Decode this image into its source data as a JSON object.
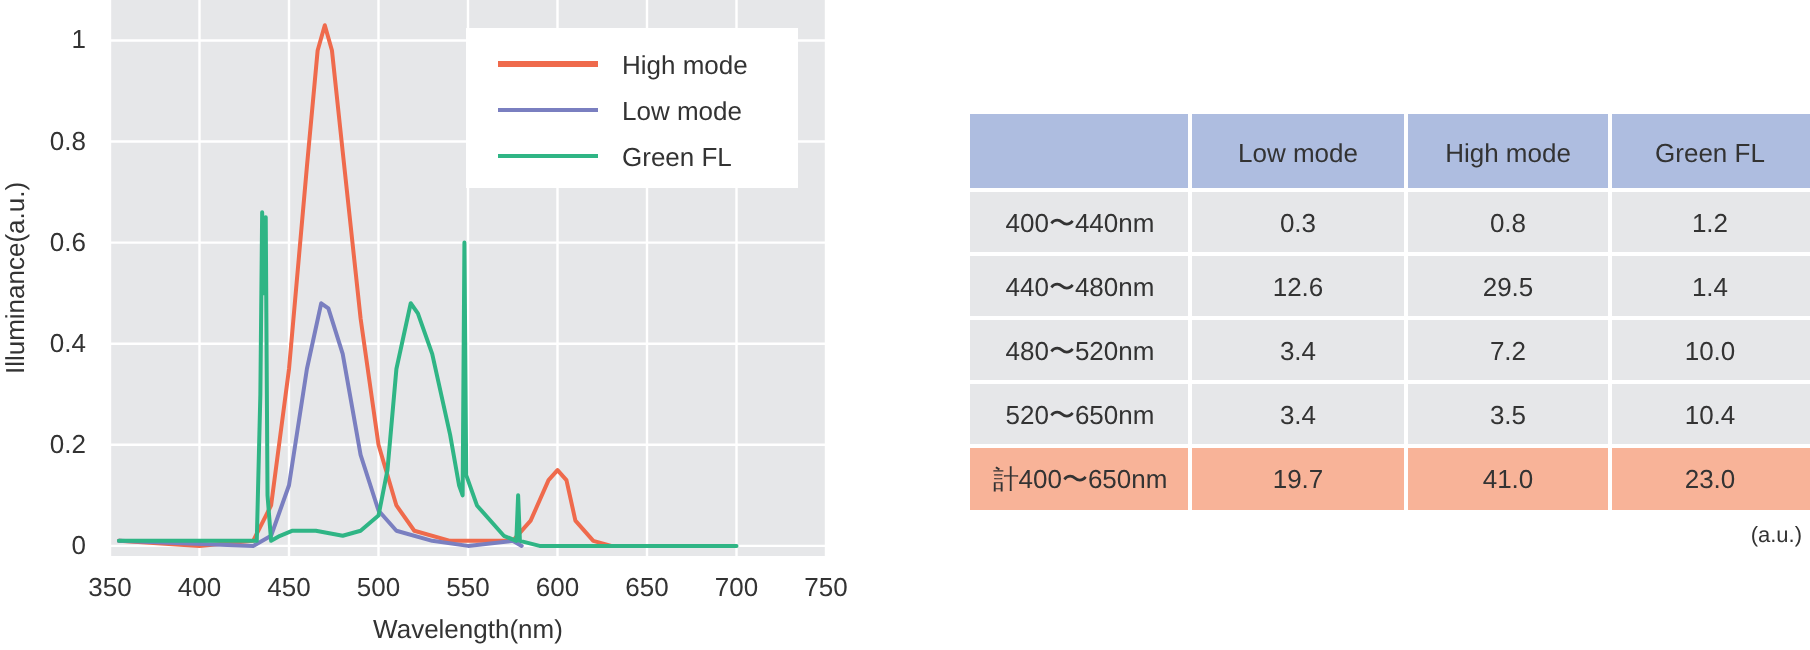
{
  "chart_data": [
    {
      "type": "line",
      "xlabel": "Wavelength(nm)",
      "ylabel": "Illuminance(a.u.)",
      "xlim": [
        350,
        750
      ],
      "ylim": [
        -0.02,
        1.08
      ],
      "xticks": [
        350,
        400,
        450,
        500,
        550,
        600,
        650,
        700,
        750
      ],
      "yticks": [
        0,
        0.2,
        0.4,
        0.6,
        0.8,
        1
      ],
      "grid": true,
      "legend": "top right",
      "line_style": "solid",
      "marker": "none",
      "series": [
        {
          "name": "High mode",
          "color": "#ef6a4c",
          "x": [
            355,
            400,
            430,
            440,
            450,
            460,
            466,
            470,
            474,
            480,
            490,
            500,
            510,
            520,
            540,
            575,
            585,
            595,
            600,
            605,
            610,
            620,
            630
          ],
          "values": [
            0.01,
            0.0,
            0.01,
            0.08,
            0.35,
            0.75,
            0.98,
            1.03,
            0.98,
            0.78,
            0.45,
            0.2,
            0.08,
            0.03,
            0.01,
            0.01,
            0.05,
            0.13,
            0.15,
            0.13,
            0.05,
            0.01,
            0.0
          ]
        },
        {
          "name": "Low mode",
          "color": "#7a7fc0",
          "x": [
            355,
            430,
            440,
            450,
            460,
            468,
            472,
            480,
            490,
            500,
            510,
            530,
            550,
            575,
            580
          ],
          "values": [
            0.01,
            0.0,
            0.02,
            0.12,
            0.35,
            0.48,
            0.47,
            0.38,
            0.18,
            0.07,
            0.03,
            0.01,
            0.0,
            0.01,
            0.0
          ]
        },
        {
          "name": "Green FL",
          "color": "#2fb585",
          "x": [
            355,
            400,
            432,
            434,
            435,
            436,
            437,
            438,
            440,
            445,
            452,
            465,
            480,
            490,
            500,
            505,
            510,
            518,
            522,
            530,
            540,
            545,
            547,
            548,
            549,
            555,
            570,
            577,
            578,
            579,
            590,
            700
          ],
          "values": [
            0.01,
            0.01,
            0.01,
            0.3,
            0.66,
            0.5,
            0.65,
            0.1,
            0.01,
            0.02,
            0.03,
            0.03,
            0.02,
            0.03,
            0.06,
            0.15,
            0.35,
            0.48,
            0.46,
            0.38,
            0.22,
            0.12,
            0.1,
            0.6,
            0.14,
            0.08,
            0.02,
            0.01,
            0.1,
            0.01,
            0.0,
            0.0
          ]
        }
      ]
    },
    {
      "type": "heatmap",
      "categories": [
        "Low mode",
        "High mode",
        "Green FL"
      ],
      "y_categories": [
        "400〜440nm",
        "440〜480nm",
        "480〜520nm",
        "520〜650nm",
        "計400〜650nm"
      ],
      "cells": [
        [
          0.3,
          0.8,
          1.2
        ],
        [
          12.6,
          29.5,
          1.4
        ],
        [
          3.4,
          7.2,
          10.0
        ],
        [
          3.4,
          3.5,
          10.4
        ],
        [
          19.7,
          41.0,
          23.0
        ]
      ],
      "cell_labels": [
        [
          "0.3",
          "0.8",
          "1.2"
        ],
        [
          "12.6",
          "29.5",
          "1.4"
        ],
        [
          "3.4",
          "7.2",
          "10.0"
        ],
        [
          "3.4",
          "3.5",
          "10.4"
        ],
        [
          "19.7",
          "41.0",
          "23.0"
        ]
      ],
      "colors": [
        "#aebde0",
        "#e6e7e9",
        "#e6e7e9",
        "#e6e7e9",
        "#e6e7e9",
        "#f8b398"
      ],
      "annotations": [
        "(a.u.)"
      ]
    }
  ]
}
